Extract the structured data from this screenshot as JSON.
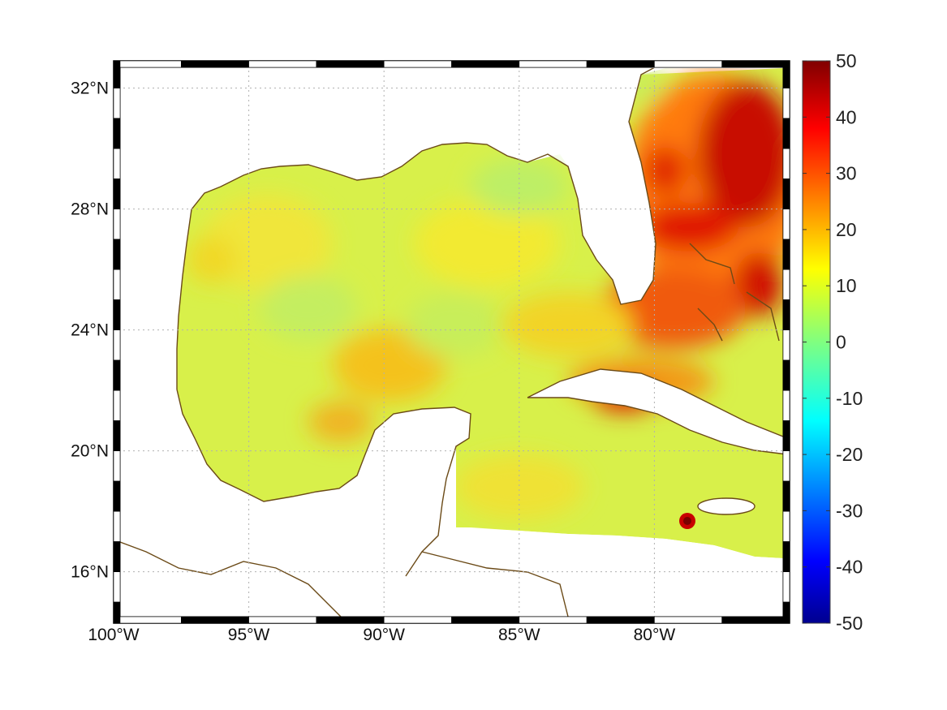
{
  "map": {
    "lon_range": [
      -100,
      -75
    ],
    "lat_range": [
      14.3,
      32.9
    ],
    "lon_ticks": [
      {
        "value": -100,
        "label": "100°W"
      },
      {
        "value": -95,
        "label": "95°W"
      },
      {
        "value": -90,
        "label": "90°W"
      },
      {
        "value": -85,
        "label": "85°W"
      },
      {
        "value": -80,
        "label": "80°W"
      }
    ],
    "lat_ticks": [
      {
        "value": 16,
        "label": "16°N"
      },
      {
        "value": 20,
        "label": "20°N"
      },
      {
        "value": 24,
        "label": "24°N"
      },
      {
        "value": 28,
        "label": "28°N"
      },
      {
        "value": 32,
        "label": "32°N"
      }
    ],
    "grid": true,
    "frame_style": "alternating black-white border",
    "coastline_color": "#6b4a17"
  },
  "colorbar": {
    "colormap": "jet",
    "min": -50,
    "max": 50,
    "labels": [
      "50",
      "40",
      "30",
      "20",
      "10",
      "0",
      "-10",
      "-20",
      "-30",
      "-40",
      "-50"
    ]
  }
}
